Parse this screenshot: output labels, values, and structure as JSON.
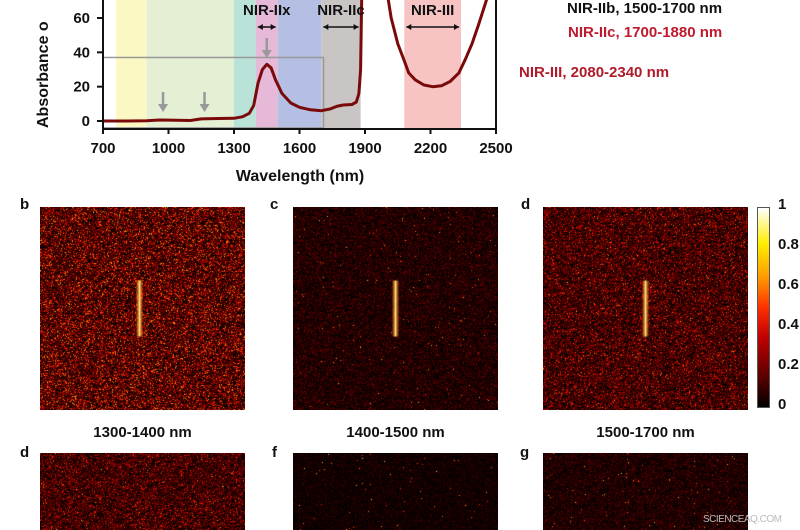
{
  "chart_data": {
    "type": "line",
    "title": "",
    "xlabel": "Wavelength (nm)",
    "ylabel": "Absorbance o",
    "xlim": [
      700,
      2500
    ],
    "ylim": [
      -4,
      75
    ],
    "xticks": [
      "700",
      "1000",
      "1300",
      "1600",
      "1900",
      "2200",
      "2500"
    ],
    "yticks": [
      "0",
      "20",
      "40",
      "60"
    ],
    "series": [
      {
        "name": "absorbance",
        "color": "#7a0a0a",
        "x": [
          700,
          800,
          900,
          960,
          1000,
          1100,
          1150,
          1200,
          1300,
          1340,
          1370,
          1390,
          1410,
          1430,
          1450,
          1470,
          1490,
          1520,
          1560,
          1600,
          1650,
          1700,
          1740,
          1770,
          1800,
          1840,
          1860,
          1872,
          1880,
          1886
        ],
        "y": [
          0,
          0,
          0.2,
          0.6,
          0.5,
          0.3,
          1.2,
          1.4,
          1.6,
          2.5,
          4.5,
          9,
          22,
          30,
          33,
          31,
          24,
          16,
          10.5,
          8,
          6.5,
          6,
          7,
          8.5,
          9.3,
          9.6,
          11,
          16,
          30,
          80
        ]
      },
      {
        "name": "absorbance-nir3",
        "color": "#7a0a0a",
        "x": [
          1995,
          2020,
          2050,
          2080,
          2100,
          2130,
          2170,
          2210,
          2250,
          2290,
          2330,
          2360,
          2390,
          2420,
          2450,
          2480
        ],
        "y": [
          80,
          60,
          45,
          35,
          28,
          24,
          21,
          20,
          20.5,
          23,
          28,
          36,
          45,
          56,
          68,
          80
        ]
      }
    ],
    "bands": [
      {
        "from": 760,
        "to": 900,
        "color": "#fbf8c4"
      },
      {
        "from": 900,
        "to": 1300,
        "color": "#e4efd4"
      },
      {
        "from": 1300,
        "to": 1400,
        "color": "#b9e2d9"
      },
      {
        "from": 1400,
        "to": 1500,
        "color": "#e6b9d9"
      },
      {
        "from": 1500,
        "to": 1700,
        "color": "#b5bfe3"
      },
      {
        "from": 1700,
        "to": 1880,
        "color": "#c9c5c5"
      },
      {
        "from": 2080,
        "to": 2340,
        "color": "#f7c3c3"
      }
    ],
    "band_labels": [
      {
        "text": "NIR-IIx",
        "from": 1400,
        "to": 1500
      },
      {
        "text": "NIR-IIc",
        "from": 1700,
        "to": 1880
      },
      {
        "text": "NIR-III",
        "from": 2080,
        "to": 2340
      }
    ],
    "arrows_at": [
      975,
      1165,
      1450
    ],
    "inset_box": {
      "x": [
        700,
        1710
      ],
      "y": [
        -4,
        37
      ]
    }
  },
  "legend": [
    {
      "text": "NIR-IIb, 1500-1700 nm",
      "color": "#111111"
    },
    {
      "text": "NIR-IIc, 1700-1880 nm",
      "color": "#c0192d"
    },
    {
      "text": "NIR-III, 2080-2340 nm",
      "color": "#b01a2a"
    }
  ],
  "panels_top": [
    {
      "label": "b",
      "caption": "1300-1400 nm",
      "brightness": 0.42
    },
    {
      "label": "c",
      "caption": "1400-1500 nm",
      "brightness": 0.15
    },
    {
      "label": "d",
      "caption": "1500-1700 nm",
      "brightness": 0.32
    }
  ],
  "panels_bottom": [
    {
      "label": "d",
      "brightness": 0.3
    },
    {
      "label": "f",
      "brightness": 0.08
    },
    {
      "label": "g",
      "brightness": 0.14
    }
  ],
  "colorbar": {
    "ticks": [
      "1",
      "0.8",
      "0.6",
      "0.4",
      "0.2",
      "0"
    ]
  },
  "watermark": "SCIENCEAQ.COM"
}
